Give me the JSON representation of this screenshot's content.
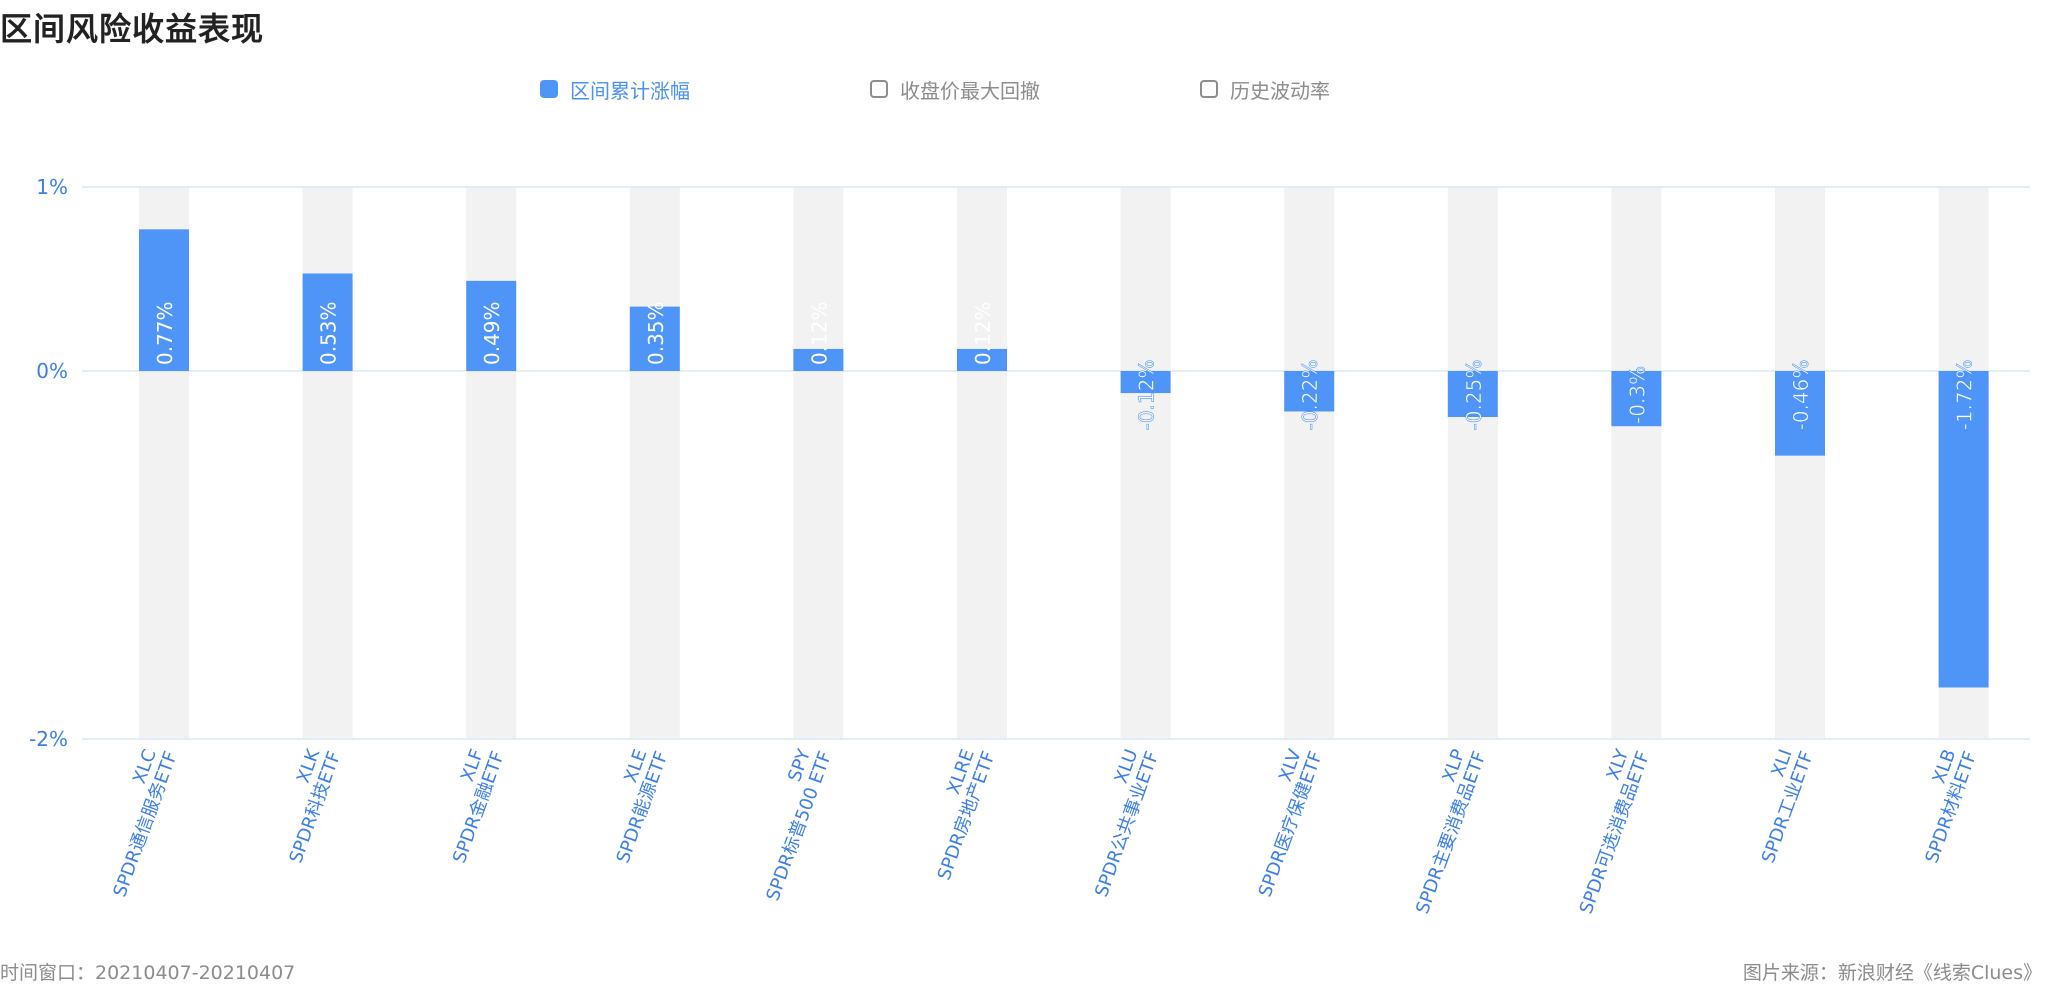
{
  "title": "区间风险收益表现",
  "legend": [
    {
      "label": "区间累计涨幅",
      "active": true
    },
    {
      "label": "收盘价最大回撤",
      "active": false
    },
    {
      "label": "历史波动率",
      "active": false
    }
  ],
  "footer": {
    "window": "时间窗口：20210407-20210407",
    "source": "图片来源：新浪财经《线索Clues》"
  },
  "colors": {
    "bar": "#4f95f7",
    "band": "#f2f2f2",
    "axis_text": "#3b7fe6",
    "grid": "#d9e8f7"
  },
  "chart_data": {
    "type": "bar",
    "title": "",
    "xlabel": "",
    "ylabel": "",
    "ylim": [
      -2,
      1
    ],
    "yticks": [
      "1%",
      "0%",
      "-2%"
    ],
    "ytick_values": [
      1,
      0,
      -2
    ],
    "categories": [
      {
        "code": "XLC",
        "name": "SPDR通信服务ETF"
      },
      {
        "code": "XLK",
        "name": "SPDR科技ETF"
      },
      {
        "code": "XLF",
        "name": "SPDR金融ETF"
      },
      {
        "code": "XLE",
        "name": "SPDR能源ETF"
      },
      {
        "code": "SPY",
        "name": "SPDR标普500 ETF"
      },
      {
        "code": "XLRE",
        "name": "SPDR房地产ETF"
      },
      {
        "code": "XLU",
        "name": "SPDR公共事业ETF"
      },
      {
        "code": "XLV",
        "name": "SPDR医疗保健ETF"
      },
      {
        "code": "XLP",
        "name": "SPDR主要消费品ETF"
      },
      {
        "code": "XLY",
        "name": "SPDR可选消费品ETF"
      },
      {
        "code": "XLI",
        "name": "SPDR工业ETF"
      },
      {
        "code": "XLB",
        "name": "SPDR材料ETF"
      }
    ],
    "series": [
      {
        "name": "区间累计涨幅",
        "values": [
          0.77,
          0.53,
          0.49,
          0.35,
          0.12,
          0.12,
          -0.12,
          -0.22,
          -0.25,
          -0.3,
          -0.46,
          -1.72
        ],
        "labels": [
          "0.77%",
          "0.53%",
          "0.49%",
          "0.35%",
          "0.12%",
          "0.12%",
          "-0.12%",
          "-0.22%",
          "-0.25%",
          "-0.3%",
          "-0.46%",
          "-1.72%"
        ]
      }
    ],
    "grid": true,
    "legend_position": "top-center"
  }
}
